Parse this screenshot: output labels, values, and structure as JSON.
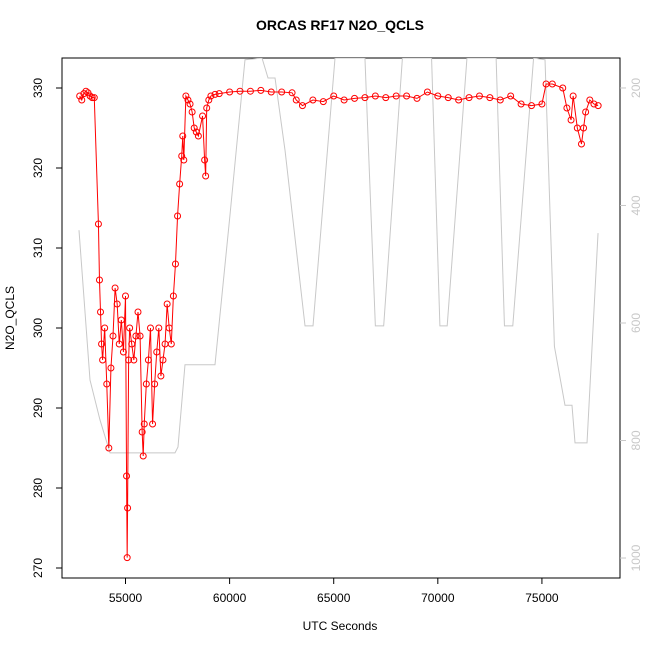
{
  "chart_data": {
    "type": "line",
    "title": "ORCAS RF17 N2O_QCLS",
    "xlabel": "UTC Seconds",
    "ylabel": "N2O_QCLS",
    "xlim": [
      51950,
      78750
    ],
    "ylim": [
      268.75,
      333.75
    ],
    "y2lim": [
      1034,
      149
    ],
    "xticks": [
      55000,
      60000,
      65000,
      70000,
      75000
    ],
    "yticks": [
      270,
      280,
      290,
      300,
      310,
      320,
      330
    ],
    "y2ticks": [
      200,
      400,
      600,
      800,
      1000
    ],
    "series": [
      {
        "color": "#ff0000",
        "marker": "circle",
        "x": [
          52800,
          52900,
          53000,
          53100,
          53200,
          53300,
          53400,
          53500,
          53700,
          53750,
          53800,
          53850,
          53900,
          54000,
          54100,
          54200,
          54300,
          54400,
          54500,
          54600,
          54700,
          54800,
          54900,
          55000,
          55050,
          55080,
          55100,
          55150,
          55200,
          55300,
          55400,
          55500,
          55600,
          55700,
          55800,
          55850,
          55900,
          56000,
          56100,
          56200,
          56300,
          56400,
          56500,
          56600,
          56700,
          56800,
          56900,
          57000,
          57100,
          57200,
          57300,
          57400,
          57500,
          57600,
          57700,
          57750,
          57800,
          57900,
          58000,
          58100,
          58200,
          58300,
          58400,
          58500,
          58700,
          58800,
          58850,
          58900,
          59000,
          59100,
          59300,
          59500,
          60000,
          60500,
          61000,
          61500,
          62000,
          62500,
          63000,
          63200,
          63500,
          64000,
          64500,
          65000,
          65500,
          66000,
          66500,
          67000,
          67500,
          68000,
          68500,
          69000,
          69500,
          70000,
          70500,
          71000,
          71500,
          72000,
          72500,
          73000,
          73500,
          74000,
          74500,
          75000,
          75200,
          75500,
          76000,
          76200,
          76400,
          76500,
          76700,
          76900,
          77000,
          77100,
          77300,
          77500,
          77700
        ],
        "values": [
          329,
          328.5,
          329.3,
          329.6,
          329.4,
          329,
          328.8,
          328.8,
          313,
          306,
          302,
          298,
          296,
          300,
          293,
          285,
          295,
          299,
          305,
          303,
          298,
          301,
          297,
          304,
          281.5,
          271.3,
          277.5,
          296,
          300,
          298,
          296,
          299,
          302,
          299,
          287,
          284,
          288,
          293,
          296,
          300,
          288,
          293,
          297,
          300,
          294,
          296,
          298,
          303,
          300,
          298,
          304,
          308,
          314,
          318,
          321.5,
          324,
          321,
          329,
          328.5,
          328,
          327,
          325,
          324.5,
          324,
          326.5,
          321,
          319,
          327.5,
          328.5,
          329,
          329.2,
          329.3,
          329.5,
          329.6,
          329.6,
          329.7,
          329.5,
          329.5,
          329.4,
          328.5,
          327.8,
          328.5,
          328.3,
          329,
          328.5,
          328.7,
          328.8,
          329,
          328.8,
          329,
          329,
          328.7,
          329.5,
          329,
          328.8,
          328.5,
          328.8,
          329,
          328.8,
          328.5,
          329,
          328,
          327.8,
          328,
          330.5,
          330.5,
          330,
          327.5,
          326,
          329,
          325,
          323,
          325,
          327,
          328.5,
          328,
          327.8
        ]
      },
      {
        "color": "#c8c8c8",
        "axis": "y2",
        "x": [
          52766,
          53295,
          53775,
          54256,
          54975,
          57377,
          57521,
          57857,
          59298,
          60019,
          60739,
          61556,
          61845,
          62181,
          62661,
          63622,
          64006,
          65063,
          65800,
          66500,
          67000,
          67400,
          68300,
          69000,
          69700,
          70100,
          70450,
          71400,
          72000,
          72800,
          73200,
          73600,
          74600,
          75149,
          75600,
          76108,
          76444,
          76590,
          77166,
          77695
        ],
        "values": [
          442,
          697,
          765,
          821,
          821,
          821,
          811,
          671,
          671,
          416,
          152,
          149,
          183,
          183,
          306,
          605,
          605,
          149,
          149,
          149,
          605,
          605,
          149,
          149,
          149,
          605,
          605,
          149,
          149,
          149,
          605,
          605,
          149,
          152,
          640,
          740,
          740,
          804,
          804,
          447
        ]
      }
    ]
  }
}
